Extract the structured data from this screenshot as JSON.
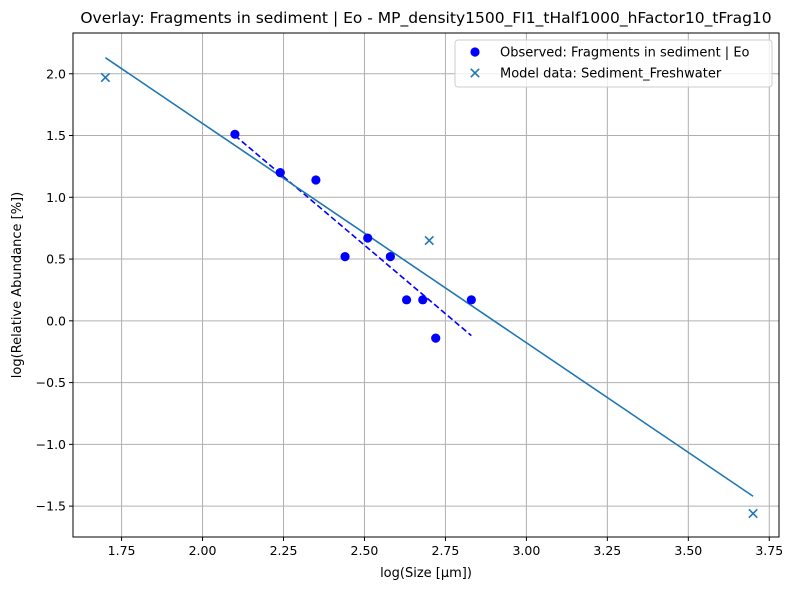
{
  "chart_data": {
    "type": "scatter",
    "title": "Overlay: Fragments in sediment | Eo - MP_density1500_FI1_tHalf1000_hFactor10_tFrag10",
    "xlabel": "log(Size [µm])",
    "ylabel": "log(Relative Abundance [%])",
    "xlim": [
      1.6,
      3.78
    ],
    "ylim": [
      -1.75,
      2.33
    ],
    "xticks": [
      1.75,
      2.0,
      2.25,
      2.5,
      2.75,
      3.0,
      3.25,
      3.5,
      3.75
    ],
    "xtick_labels": [
      "1.75",
      "2.00",
      "2.25",
      "2.50",
      "2.75",
      "3.00",
      "3.25",
      "3.50",
      "3.75"
    ],
    "yticks": [
      -1.5,
      -1.0,
      -0.5,
      0.0,
      0.5,
      1.0,
      1.5,
      2.0
    ],
    "ytick_labels": [
      "−1.5",
      "−1.0",
      "−0.5",
      "0.0",
      "0.5",
      "1.0",
      "1.5",
      "2.0"
    ],
    "grid": true,
    "legend_position": "top-right",
    "series": [
      {
        "name": "Observed: Fragments in sediment | Eo",
        "kind": "scatter",
        "marker": "circle",
        "color": "#0000ff",
        "points": [
          [
            2.1,
            1.51
          ],
          [
            2.24,
            1.2
          ],
          [
            2.35,
            1.14
          ],
          [
            2.44,
            0.52
          ],
          [
            2.51,
            0.67
          ],
          [
            2.58,
            0.52
          ],
          [
            2.63,
            0.17
          ],
          [
            2.68,
            0.17
          ],
          [
            2.72,
            -0.14
          ],
          [
            2.83,
            0.17
          ]
        ]
      },
      {
        "name": "Model data: Sediment_Freshwater",
        "kind": "scatter",
        "marker": "x",
        "color": "#1f77b4",
        "points": [
          [
            1.7,
            1.97
          ],
          [
            2.7,
            0.65
          ],
          [
            3.7,
            -1.56
          ]
        ]
      }
    ],
    "fit_lines": [
      {
        "color": "#0000ff",
        "dash": "dashed",
        "points": [
          [
            2.1,
            1.5
          ],
          [
            2.83,
            -0.12
          ]
        ]
      },
      {
        "color": "#1f77b4",
        "dash": "solid",
        "points": [
          [
            1.7,
            2.13
          ],
          [
            3.7,
            -1.42
          ]
        ]
      }
    ]
  }
}
